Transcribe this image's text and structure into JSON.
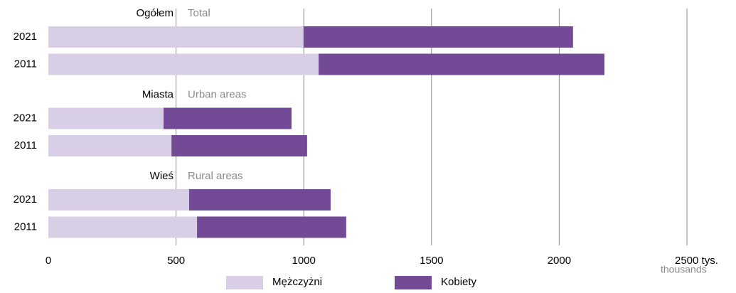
{
  "chart_data": {
    "type": "stacked-barh",
    "groups": [
      {
        "label": "Ogółem",
        "label_en": "Total"
      },
      {
        "label": "Miasta",
        "label_en": "Urban areas"
      },
      {
        "label": "Wieś",
        "label_en": "Rural areas"
      }
    ],
    "categories": [
      "2021",
      "2011",
      "2021",
      "2011",
      "2021",
      "2011"
    ],
    "series": [
      {
        "name": "Mężczyżni",
        "color": "#d8cfe6",
        "values": [
          999,
          1058,
          451,
          482,
          551,
          582
        ]
      },
      {
        "name": "Kobiety",
        "color": "#724a96",
        "values": [
          1055,
          1119,
          501,
          531,
          554,
          584
        ]
      }
    ],
    "xlim": [
      0,
      2500
    ],
    "xticks": [
      0,
      500,
      1000,
      1500,
      2000,
      {
        "value": 2500,
        "label": "2500 tys."
      }
    ],
    "xlabel": "thousands",
    "grid": true
  }
}
